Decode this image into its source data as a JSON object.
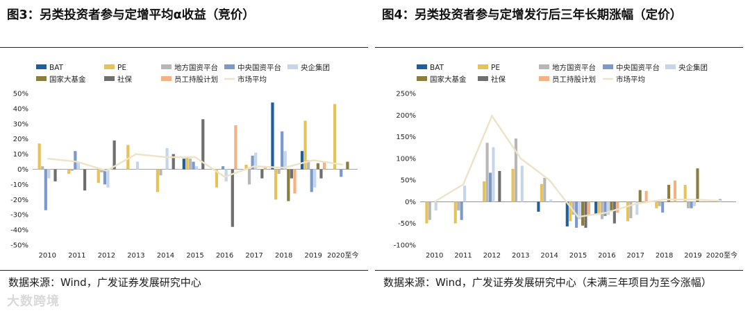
{
  "figures": [
    {
      "title": "图3：另类投资者参与定增平均α收益（竞价）",
      "source": "数据来源：Wind，广发证券发展研究中心"
    },
    {
      "title": "图4：另类投资者参与定增发行后三年长期涨幅（定价）",
      "source": "数据来源：Wind，广发证券发展研究中心（未满三年项目为至今涨幅）"
    }
  ],
  "watermark": "大数跨境",
  "colors": {
    "BAT": "#1f5f9b",
    "PE": "#e5c35a",
    "地方国资平台": "#b7b7b7",
    "中央国资平台": "#7b9ac9",
    "央企集团": "#c5d6ec",
    "国家大基金": "#8b7d3e",
    "社保": "#6f6f6f",
    "员工持股计划": "#f4b183",
    "市场平均": "#ede4c8"
  },
  "chart_data": [
    {
      "type": "bar",
      "title": "另类投资者参与定增平均α收益（竞价）",
      "categories": [
        "2010",
        "2011",
        "2012",
        "2013",
        "2014",
        "2015",
        "2016",
        "2017",
        "2018",
        "2019",
        "2020至今"
      ],
      "ylim": [
        -0.5,
        0.5
      ],
      "yticks": [
        "50%",
        "40%",
        "30%",
        "20%",
        "10%",
        "0%",
        "-10%",
        "-20%",
        "-30%",
        "-40%",
        "-50%"
      ],
      "ytick_values": [
        0.5,
        0.4,
        0.3,
        0.2,
        0.1,
        0,
        -0.1,
        -0.2,
        -0.3,
        -0.4,
        -0.5
      ],
      "legend": [
        "BAT",
        "PE",
        "地方国资平台",
        "中央国资平台",
        "央企集团",
        "国家大基金",
        "社保",
        "员工持股计划",
        "市场平均"
      ],
      "series": [
        {
          "name": "BAT",
          "values": [
            null,
            null,
            null,
            null,
            null,
            0.07,
            null,
            null,
            0.44,
            0.12,
            null
          ]
        },
        {
          "name": "PE",
          "values": [
            0.17,
            -0.03,
            -0.09,
            0.16,
            -0.15,
            0.08,
            -0.12,
            0.03,
            -0.2,
            0.32,
            0.43
          ]
        },
        {
          "name": "地方国资平台",
          "values": [
            0.02,
            -0.01,
            -0.02,
            0.0,
            -0.04,
            0.07,
            0.0,
            -0.1,
            -0.03,
            0.06,
            0.0
          ]
        },
        {
          "name": "中央国资平台",
          "values": [
            -0.27,
            0.12,
            -0.1,
            0.0,
            0.0,
            0.05,
            0.02,
            0.09,
            0.25,
            -0.15,
            -0.05
          ]
        },
        {
          "name": "央企集团",
          "values": [
            -0.06,
            0.05,
            -0.12,
            0.05,
            0.14,
            0.02,
            -0.08,
            0.11,
            0.12,
            -0.12,
            0.0
          ]
        },
        {
          "name": "国家大基金",
          "values": [
            null,
            null,
            null,
            null,
            null,
            null,
            null,
            null,
            -0.21,
            0.04,
            0.05
          ]
        },
        {
          "name": "社保",
          "values": [
            -0.08,
            -0.14,
            0.19,
            0.0,
            0.1,
            0.33,
            -0.38,
            -0.06,
            -0.06,
            -0.06,
            0.0
          ]
        },
        {
          "name": "员工持股计划",
          "values": [
            null,
            null,
            null,
            null,
            null,
            null,
            0.29,
            0.02,
            -0.16,
            0.05,
            null
          ]
        },
        {
          "name": "市场平均",
          "type": "line",
          "values": [
            0.07,
            0.05,
            -0.01,
            0.1,
            0.08,
            0.08,
            -0.05,
            0.02,
            0.01,
            0.06,
            0.03
          ]
        }
      ]
    },
    {
      "type": "bar",
      "title": "另类投资者参与定增发行后三年长期涨幅（定价）",
      "categories": [
        "2010",
        "2011",
        "2012",
        "2013",
        "2014",
        "2015",
        "2016",
        "2017",
        "2018",
        "2019",
        "2020至今"
      ],
      "ylim": [
        -1.0,
        2.5
      ],
      "yticks": [
        "250%",
        "200%",
        "150%",
        "100%",
        "50%",
        "0%",
        "-50%",
        "-100%"
      ],
      "ytick_values": [
        2.5,
        2.0,
        1.5,
        1.0,
        0.5,
        0,
        -0.5,
        -1.0
      ],
      "legend": [
        "BAT",
        "PE",
        "地方国资平台",
        "中央国资平台",
        "央企集团",
        "国家大基金",
        "社保",
        "员工持股计划",
        "市场平均"
      ],
      "series": [
        {
          "name": "BAT",
          "values": [
            null,
            null,
            null,
            null,
            -0.23,
            -0.57,
            -0.28,
            null,
            null,
            null,
            null
          ]
        },
        {
          "name": "PE",
          "values": [
            -0.5,
            -0.5,
            0.47,
            0.76,
            0.41,
            -0.45,
            -0.3,
            -0.45,
            -0.15,
            0.39,
            null
          ]
        },
        {
          "name": "地方国资平台",
          "values": [
            -0.42,
            -0.2,
            1.36,
            1.46,
            0.55,
            -0.3,
            -0.4,
            -0.38,
            -0.1,
            -0.15,
            null
          ]
        },
        {
          "name": "中央国资平台",
          "values": [
            null,
            -0.42,
            0.67,
            0.0,
            0.0,
            -0.6,
            -0.33,
            0.0,
            -0.25,
            -0.15,
            0.06
          ]
        },
        {
          "name": "央企集团",
          "values": [
            -0.2,
            0.37,
            1.26,
            0.83,
            0.05,
            -0.4,
            -0.3,
            -0.3,
            0.0,
            -0.1,
            0.0
          ]
        },
        {
          "name": "国家大基金",
          "values": [
            null,
            null,
            null,
            null,
            null,
            -0.55,
            -0.2,
            0.27,
            0.39,
            0.77,
            null
          ]
        },
        {
          "name": "社保",
          "values": [
            null,
            null,
            0.71,
            null,
            null,
            -0.6,
            -0.5,
            null,
            null,
            null,
            null
          ]
        },
        {
          "name": "员工持股计划",
          "values": [
            null,
            null,
            null,
            null,
            null,
            -0.3,
            -0.25,
            0.25,
            0.49,
            null,
            null
          ]
        },
        {
          "name": "市场平均",
          "type": "line",
          "values": [
            0.0,
            0.4,
            1.98,
            1.0,
            0.5,
            -0.35,
            -0.25,
            -0.05,
            0.05,
            0.05,
            0.02
          ]
        }
      ]
    }
  ]
}
